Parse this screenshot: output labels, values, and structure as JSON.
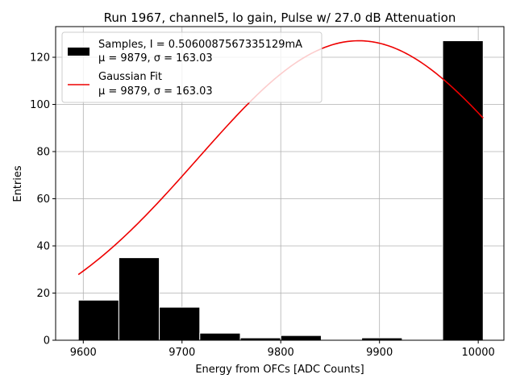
{
  "chart_data": {
    "type": "bar",
    "title": "Run 1967, channel5, lo gain, Pulse w/ 27.0 dB Attenuation",
    "xlabel": "Energy from OFCs [ADC Counts]",
    "ylabel": "Entries",
    "xlim": [
      9572,
      10026
    ],
    "ylim": [
      0,
      133
    ],
    "xticks": [
      9600,
      9700,
      9800,
      9900,
      10000
    ],
    "yticks": [
      0,
      20,
      40,
      60,
      80,
      100,
      120
    ],
    "grid": true,
    "legend_position": "top-left",
    "bins": [
      {
        "x0": 9595,
        "x1": 9636,
        "value": 17
      },
      {
        "x0": 9636,
        "x1": 9677,
        "value": 35
      },
      {
        "x0": 9677,
        "x1": 9718,
        "value": 14
      },
      {
        "x0": 9718,
        "x1": 9759,
        "value": 3
      },
      {
        "x0": 9759,
        "x1": 9800,
        "value": 1
      },
      {
        "x0": 9800,
        "x1": 9841,
        "value": 2
      },
      {
        "x0": 9841,
        "x1": 9882,
        "value": 0
      },
      {
        "x0": 9882,
        "x1": 9923,
        "value": 1
      },
      {
        "x0": 9923,
        "x1": 9964,
        "value": 0
      },
      {
        "x0": 9964,
        "x1": 10005,
        "value": 127
      }
    ],
    "bar_color": "#000000",
    "fit": {
      "amplitude": 127,
      "mean": 9879,
      "sigma": 163.03,
      "x_range": [
        9595,
        10005
      ],
      "color": "#ee0000"
    },
    "legend": [
      {
        "line1": "Samples, I = 0.5060087567335129mA",
        "line2": "μ = 9879, σ = 163.03"
      },
      {
        "line1": "Gaussian Fit",
        "line2": "μ = 9879, σ = 163.03"
      }
    ]
  }
}
